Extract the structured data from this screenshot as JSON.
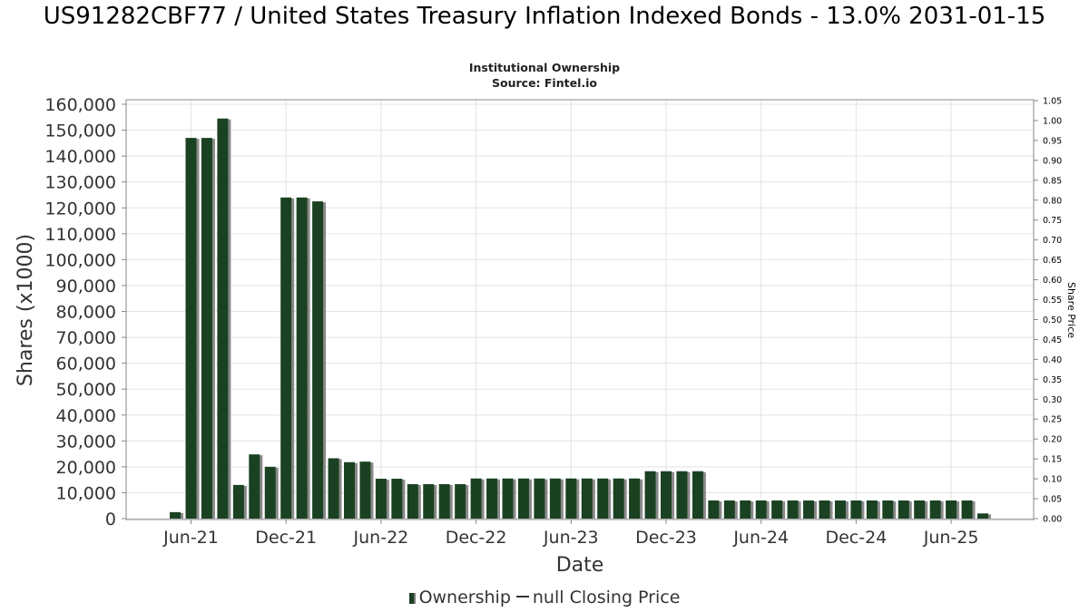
{
  "page": {
    "title": "US91282CBF77 / United States Treasury Inflation Indexed Bonds - 13.0% 2031-01-15",
    "subtitle": "Institutional Ownership",
    "source": "Source: Fintel.io"
  },
  "legend": {
    "items": [
      {
        "label": "Ownership",
        "color": "#1a4222"
      },
      {
        "label": "null Closing Price",
        "color": "#333333"
      }
    ]
  },
  "chart_data": {
    "type": "bar",
    "title": "US91282CBF77 / United States Treasury Inflation Indexed Bonds - 13.0% 2031-01-15",
    "subtitle": "Institutional Ownership",
    "xlabel": "Date",
    "ylabel": "Shares (x1000)",
    "y2label": "Share Price",
    "ylim": [
      0,
      160000
    ],
    "y2lim": [
      0,
      1.05
    ],
    "yticks": [
      0,
      10000,
      20000,
      30000,
      40000,
      50000,
      60000,
      70000,
      80000,
      90000,
      100000,
      110000,
      120000,
      130000,
      140000,
      150000,
      160000
    ],
    "ytick_labels": [
      "0",
      "10,000",
      "20,000",
      "30,000",
      "40,000",
      "50,000",
      "60,000",
      "70,000",
      "80,000",
      "90,000",
      "100,000",
      "110,000",
      "120,000",
      "130,000",
      "140,000",
      "150,000",
      "160,000"
    ],
    "y2ticks": [
      "0.00",
      "0.05",
      "0.10",
      "0.15",
      "0.20",
      "0.25",
      "0.30",
      "0.35",
      "0.40",
      "0.45",
      "0.50",
      "0.55",
      "0.60",
      "0.65",
      "0.70",
      "0.75",
      "0.80",
      "0.85",
      "0.90",
      "0.95",
      "1.00",
      "1.05"
    ],
    "xticks": [
      "Jun-21",
      "Dec-21",
      "Jun-22",
      "Dec-22",
      "Jun-23",
      "Dec-23",
      "Jun-24",
      "Dec-24",
      "Jun-25"
    ],
    "xlim": [
      "2021-01",
      "2025-10"
    ],
    "grid": true,
    "legend_position": "bottom",
    "series": [
      {
        "name": "Ownership",
        "color": "#1a4222",
        "x": [
          "2021-05",
          "2021-06",
          "2021-07",
          "2021-08",
          "2021-09",
          "2021-10",
          "2021-11",
          "2021-12",
          "2022-01",
          "2022-02",
          "2022-03",
          "2022-04",
          "2022-05",
          "2022-06",
          "2022-07",
          "2022-08",
          "2022-09",
          "2022-10",
          "2022-11",
          "2022-12",
          "2023-01",
          "2023-02",
          "2023-03",
          "2023-04",
          "2023-05",
          "2023-06",
          "2023-07",
          "2023-08",
          "2023-09",
          "2023-10",
          "2023-11",
          "2023-12",
          "2024-01",
          "2024-02",
          "2024-03",
          "2024-04",
          "2024-05",
          "2024-06",
          "2024-07",
          "2024-08",
          "2024-09",
          "2024-10",
          "2024-11",
          "2024-12",
          "2025-01",
          "2025-02",
          "2025-03",
          "2025-04",
          "2025-05",
          "2025-06",
          "2025-07",
          "2025-08"
        ],
        "values": [
          2500,
          147000,
          147000,
          154500,
          13000,
          24800,
          20000,
          124000,
          124000,
          122500,
          23300,
          21800,
          22000,
          15400,
          15400,
          13300,
          13300,
          13300,
          13300,
          15500,
          15500,
          15500,
          15500,
          15500,
          15500,
          15500,
          15500,
          15500,
          15500,
          15500,
          18300,
          18300,
          18300,
          18300,
          7000,
          7000,
          7000,
          7000,
          7000,
          7000,
          7000,
          7000,
          7000,
          7000,
          7000,
          7000,
          7000,
          7000,
          7000,
          7000,
          7000,
          2000
        ]
      }
    ]
  }
}
